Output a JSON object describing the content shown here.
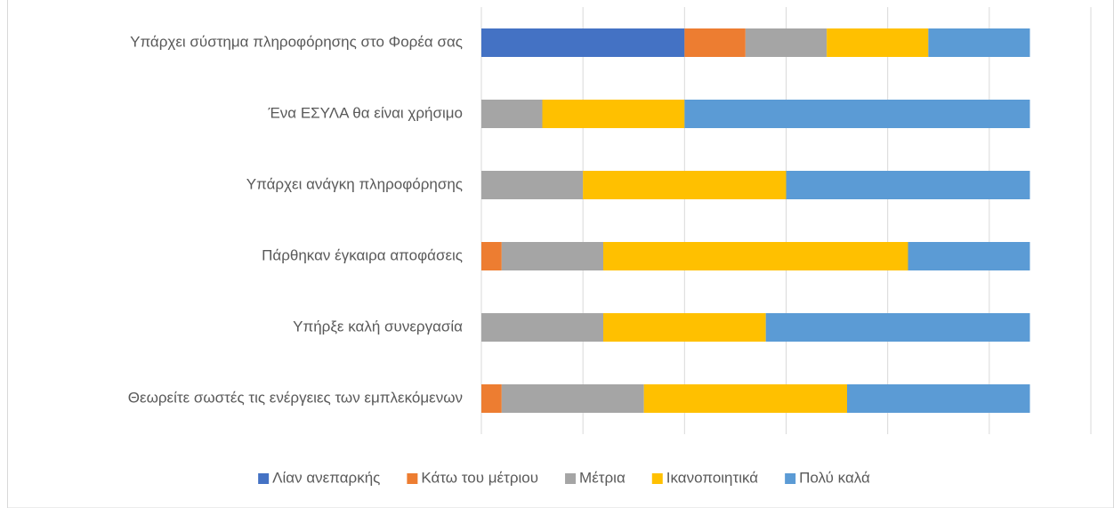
{
  "chart_data": {
    "type": "stacked_barh",
    "categories": [
      "Υπάρχει σύστημα πληροφόρησης στο Φορέα σας",
      "Ένα ΕΣΥΛΑ θα είναι χρήσιμο",
      "Υπάρχει ανάγκη πληροφόρησης",
      "Πάρθηκαν έγκαιρα αποφάσεις",
      "Υπήρξε καλή συνεργασία",
      "Θεωρείτε σωστές τις ενέργειες των εμπλεκόμενων"
    ],
    "series": [
      {
        "name": "Λίαν ανεπαρκής",
        "color": "#4472c4",
        "values": [
          10,
          0,
          0,
          0,
          0,
          0
        ]
      },
      {
        "name": "Κάτω του μέτριου",
        "color": "#ed7d31",
        "values": [
          3,
          0,
          0,
          1,
          0,
          1
        ]
      },
      {
        "name": "Μέτρια",
        "color": "#a5a5a5",
        "values": [
          4,
          3,
          5,
          5,
          6,
          7
        ]
      },
      {
        "name": "Ικανοποιητικά",
        "color": "#ffc000",
        "values": [
          5,
          7,
          10,
          15,
          8,
          10
        ]
      },
      {
        "name": "Πολύ καλά",
        "color": "#5b9bd5",
        "values": [
          5,
          17,
          12,
          6,
          13,
          9
        ]
      }
    ],
    "xlim": [
      0,
      30
    ],
    "xticks": [
      0,
      5,
      10,
      15,
      20,
      25,
      30
    ],
    "grid": true,
    "legend": "bottom"
  }
}
